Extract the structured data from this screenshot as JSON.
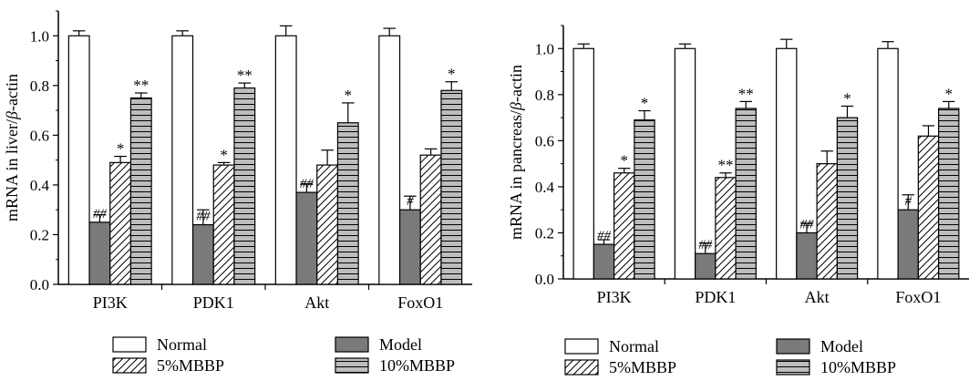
{
  "chart_data": [
    {
      "type": "bar",
      "title": "",
      "xlabel": "",
      "ylabel": "mRNA in liver/",
      "ylabel_italic": "β",
      "ylabel_suffix": "-actin",
      "categories": [
        "PI3K",
        "PDK1",
        "Akt",
        "FoxO1"
      ],
      "ylim": [
        0.0,
        1.1
      ],
      "yticks": [
        "0.0",
        "0.2",
        "0.4",
        "0.6",
        "0.8",
        "1.0"
      ],
      "grid": false,
      "legend_position": "bottom",
      "series": [
        {
          "name": "Normal",
          "values": [
            1.0,
            1.0,
            1.0,
            1.0
          ],
          "errors": [
            0.02,
            0.02,
            0.04,
            0.03
          ],
          "annotations": [
            "",
            "",
            "",
            ""
          ]
        },
        {
          "name": "Model",
          "values": [
            0.25,
            0.24,
            0.37,
            0.3
          ],
          "errors": [
            0.03,
            0.06,
            0.035,
            0.055
          ],
          "annotations": [
            "##",
            "##",
            "##",
            "#"
          ]
        },
        {
          "name": "5%MBBP",
          "values": [
            0.49,
            0.48,
            0.48,
            0.52
          ],
          "errors": [
            0.025,
            0.01,
            0.06,
            0.025
          ],
          "annotations": [
            "*",
            "*",
            "",
            ""
          ]
        },
        {
          "name": "10%MBBP",
          "values": [
            0.75,
            0.79,
            0.65,
            0.78
          ],
          "errors": [
            0.02,
            0.02,
            0.08,
            0.035
          ],
          "annotations": [
            "**",
            "**",
            "*",
            "*"
          ]
        }
      ]
    },
    {
      "type": "bar",
      "title": "",
      "xlabel": "",
      "ylabel": "mRNA in pancreas/",
      "ylabel_italic": "β",
      "ylabel_suffix": "-actin",
      "categories": [
        "PI3K",
        "PDK1",
        "Akt",
        "FoxO1"
      ],
      "ylim": [
        0.0,
        1.1
      ],
      "yticks": [
        "0.0",
        "0.2",
        "0.4",
        "0.6",
        "0.8",
        "1.0"
      ],
      "grid": false,
      "legend_position": "bottom",
      "series": [
        {
          "name": "Normal",
          "values": [
            1.0,
            1.0,
            1.0,
            1.0
          ],
          "errors": [
            0.02,
            0.02,
            0.04,
            0.03
          ],
          "annotations": [
            "",
            "",
            "",
            ""
          ]
        },
        {
          "name": "Model",
          "values": [
            0.15,
            0.11,
            0.2,
            0.3
          ],
          "errors": [
            0.02,
            0.045,
            0.04,
            0.065
          ],
          "annotations": [
            "##",
            "##",
            "##",
            "#"
          ]
        },
        {
          "name": "5%MBBP",
          "values": [
            0.46,
            0.44,
            0.5,
            0.62
          ],
          "errors": [
            0.02,
            0.02,
            0.055,
            0.045
          ],
          "annotations": [
            "*",
            "**",
            "",
            ""
          ]
        },
        {
          "name": "10%MBBP",
          "values": [
            0.69,
            0.74,
            0.7,
            0.74
          ],
          "errors": [
            0.04,
            0.03,
            0.05,
            0.03
          ],
          "annotations": [
            "*",
            "**",
            "*",
            "*"
          ]
        }
      ]
    }
  ],
  "series_styles": {
    "Normal": {
      "fill": "#ffffff",
      "pattern": "none"
    },
    "Model": {
      "fill": "#7a7a7a",
      "pattern": "none"
    },
    "5%MBBP": {
      "fill": "#ffffff",
      "pattern": "diagonal-hatch"
    },
    "10%MBBP": {
      "fill": "#bdbdbd",
      "pattern": "horizontal-lines"
    }
  }
}
